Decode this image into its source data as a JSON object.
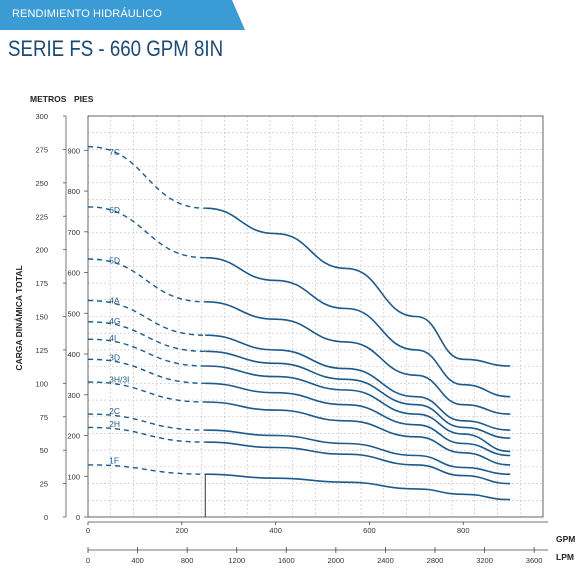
{
  "header": {
    "banner": "RENDIMIENTO HIDRÁULICO",
    "title": "SERIE FS - 660 GPM 8IN",
    "banner_color": "#3a9bd5",
    "title_color": "#1a4a75"
  },
  "chart_data": {
    "type": "line",
    "title": "SERIE FS - 660 GPM 8IN",
    "ylabel": "CARGA DINÁMICA TOTAL",
    "y_units": [
      "METROS",
      "PIES"
    ],
    "x_units": [
      "GPM",
      "LPM"
    ],
    "xlim": [
      0,
      970
    ],
    "ylim": [
      0,
      300
    ],
    "x_ticks_gpm": [
      "0",
      "200",
      "400",
      "600",
      "800"
    ],
    "x_ticks_lpm": [
      "0",
      "400",
      "800",
      "1200",
      "1600",
      "2000",
      "2400",
      "2800",
      "3200",
      "3600"
    ],
    "y_ticks_metros": [
      "0",
      "25",
      "50",
      "75",
      "100",
      "125",
      "150",
      "175",
      "200",
      "225",
      "250",
      "275",
      "300"
    ],
    "y_ticks_pies": [
      "0",
      "100",
      "200",
      "300",
      "400",
      "500",
      "600",
      "700",
      "800",
      "900"
    ],
    "grid": true,
    "line_color": "#1d5a8a",
    "dashed_until_gpm": 250,
    "series": [
      {
        "name": "7C",
        "x": [
          0,
          250,
          400,
          550,
          700,
          800,
          900
        ],
        "y": [
          277,
          231,
          212,
          186,
          150,
          118,
          113
        ]
      },
      {
        "name": "6D",
        "x": [
          0,
          250,
          400,
          550,
          700,
          800,
          900
        ],
        "y": [
          232,
          194,
          177,
          156,
          125,
          99,
          90
        ]
      },
      {
        "name": "5D",
        "x": [
          0,
          250,
          400,
          550,
          700,
          800,
          900
        ],
        "y": [
          193,
          161,
          148,
          131,
          106,
          84,
          77
        ]
      },
      {
        "name": "4A",
        "x": [
          0,
          250,
          400,
          550,
          700,
          800,
          900
        ],
        "y": [
          162,
          136,
          125,
          111,
          90,
          72,
          65
        ]
      },
      {
        "name": "4G",
        "x": [
          0,
          250,
          400,
          550,
          700,
          800,
          900
        ],
        "y": [
          146,
          124,
          115,
          103,
          84,
          67,
          59
        ]
      },
      {
        "name": "4I",
        "x": [
          0,
          250,
          400,
          550,
          700,
          800,
          900
        ],
        "y": [
          133,
          113,
          105,
          95,
          77,
          62,
          49
        ]
      },
      {
        "name": "3D",
        "x": [
          0,
          250,
          400,
          550,
          700,
          800,
          900
        ],
        "y": [
          118,
          100,
          93,
          84,
          69,
          55,
          46
        ]
      },
      {
        "name": "3H/3I",
        "x": [
          0,
          250,
          400,
          550,
          700,
          800,
          900
        ],
        "y": [
          101,
          86,
          80,
          72,
          60,
          48,
          39
        ]
      },
      {
        "name": "2C",
        "x": [
          0,
          250,
          400,
          550,
          700,
          800,
          900
        ],
        "y": [
          77,
          65,
          61,
          55,
          46,
          37,
          32
        ]
      },
      {
        "name": "2H",
        "x": [
          0,
          250,
          400,
          550,
          700,
          800,
          900
        ],
        "y": [
          67,
          56,
          52,
          47,
          39,
          31,
          25
        ]
      },
      {
        "name": "1F",
        "x": [
          0,
          250,
          400,
          550,
          700,
          800,
          900
        ],
        "y": [
          39,
          32,
          29,
          26,
          21,
          17,
          13
        ]
      }
    ]
  }
}
